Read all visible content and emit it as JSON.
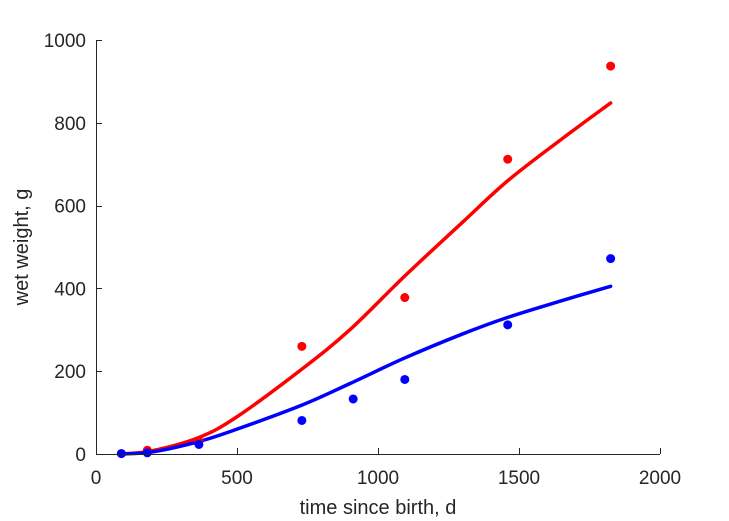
{
  "chart_data": {
    "type": "scatter",
    "title": "",
    "xlabel": "time since birth, d",
    "ylabel": "wet weight, g",
    "xlim": [
      0,
      2000
    ],
    "ylim": [
      0,
      1000
    ],
    "xticks": [
      0,
      500,
      1000,
      1500,
      2000
    ],
    "yticks": [
      0,
      200,
      400,
      600,
      800,
      1000
    ],
    "xtick_labels": [
      "0",
      "500",
      "1000",
      "1500",
      "2000"
    ],
    "ytick_labels": [
      "0",
      "200",
      "400",
      "600",
      "800",
      "1000"
    ],
    "grid": false,
    "legend": "none",
    "series": [
      {
        "color": "#ff0000",
        "points": {
          "x": [
            90,
            182,
            365,
            730,
            1095,
            1460,
            1825
          ],
          "y": [
            1,
            9,
            31,
            260,
            378,
            712,
            937
          ]
        },
        "fit": {
          "x": [
            90,
            200,
            365,
            500,
            730,
            900,
            1095,
            1300,
            1460,
            1650,
            1825
          ],
          "y": [
            0,
            8,
            40,
            90,
            205,
            300,
            430,
            560,
            660,
            760,
            848
          ]
        }
      },
      {
        "color": "#0000ff",
        "points": {
          "x": [
            90,
            182,
            365,
            730,
            912,
            1095,
            1460,
            1825
          ],
          "y": [
            1,
            3,
            23,
            81,
            133,
            180,
            312,
            472
          ]
        },
        "fit": {
          "x": [
            90,
            200,
            365,
            500,
            730,
            900,
            1095,
            1300,
            1460,
            1650,
            1825
          ],
          "y": [
            0,
            5,
            30,
            60,
            118,
            170,
            232,
            290,
            330,
            370,
            405
          ]
        }
      }
    ]
  }
}
